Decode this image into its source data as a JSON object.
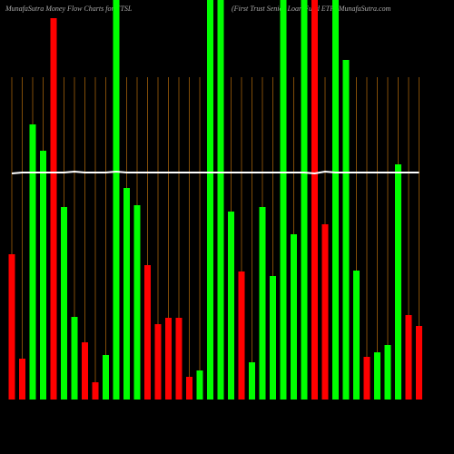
{
  "chart_data": {
    "type": "bar",
    "title": "MunafaSutra  Money Flow  Charts for FTSL",
    "subtitle": "(First Trust Senior Loan Fund ETF) MunafaSutra.com",
    "categories": [
      null,
      null,
      null,
      null,
      null,
      null,
      null,
      null,
      null,
      null,
      null,
      null,
      null,
      null,
      null,
      null,
      null,
      null,
      null,
      null,
      null,
      null,
      null,
      null,
      null,
      null,
      null,
      null,
      null,
      null,
      null,
      null,
      null,
      null,
      null,
      null,
      null,
      null,
      null,
      null
    ],
    "values": [
      160,
      45,
      303,
      274,
      420,
      212,
      91,
      63,
      19,
      49,
      440,
      233,
      214,
      148,
      83,
      90,
      90,
      25,
      32,
      440,
      440,
      207,
      141,
      41,
      212,
      136,
      440,
      182,
      440,
      440,
      193,
      440,
      374,
      142,
      47,
      52,
      60,
      259,
      93,
      81
    ],
    "colors": [
      "#ff0000",
      "#ff0000",
      "#00ff00",
      "#00ff00",
      "#ff0000",
      "#00ff00",
      "#00ff00",
      "#ff0000",
      "#ff0000",
      "#00ff00",
      "#00ff00",
      "#00ff00",
      "#00ff00",
      "#ff0000",
      "#ff0000",
      "#ff0000",
      "#ff0000",
      "#ff0000",
      "#00ff00",
      "#00ff00",
      "#00ff00",
      "#00ff00",
      "#ff0000",
      "#00ff00",
      "#00ff00",
      "#00ff00",
      "#00ff00",
      "#00ff00",
      "#00ff00",
      "#ff0000",
      "#ff0000",
      "#00ff00",
      "#00ff00",
      "#00ff00",
      "#ff0000",
      "#00ff00",
      "#00ff00",
      "#00ff00",
      "#ff0000",
      "#ff0000"
    ],
    "line_values": [
      249,
      250,
      250,
      250,
      250,
      250,
      251,
      250,
      250,
      250,
      251,
      250,
      250,
      250,
      250,
      250,
      250,
      250,
      250,
      250,
      250,
      250,
      250,
      250,
      250,
      250,
      250,
      250,
      250,
      249,
      251,
      250,
      250,
      250,
      250,
      250,
      250,
      250,
      250,
      250
    ],
    "line_color": "#ffffff",
    "grid_color": "#a0600a",
    "ylim": [
      0,
      440
    ],
    "grid": true
  }
}
